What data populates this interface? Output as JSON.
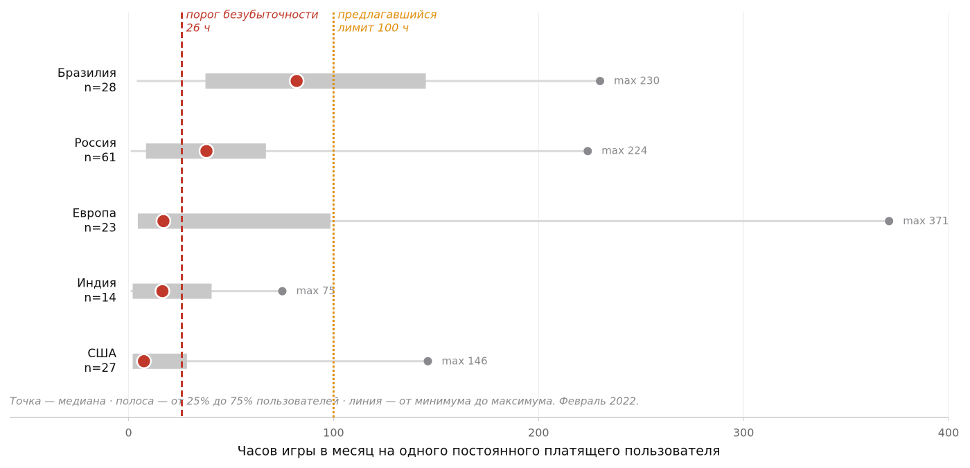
{
  "chart_data": {
    "type": "range",
    "categories": [
      "Бразилия",
      "Россия",
      "Европа",
      "Индия",
      "США"
    ],
    "sample_labels": [
      "n=28",
      "n=61",
      "n=23",
      "n=14",
      "n=27"
    ],
    "min": [
      4,
      1,
      4.5,
      1,
      2
    ],
    "q1": [
      37.5,
      8.5,
      4.5,
      2,
      2
    ],
    "median": [
      82,
      38,
      17,
      16.5,
      7.5
    ],
    "q3": [
      145,
      67,
      98.5,
      40.5,
      28.5
    ],
    "max": [
      230,
      224,
      371,
      75,
      146
    ],
    "value_labels": [
      "max 230",
      "max 224",
      "max 371",
      "max 75",
      "max 146"
    ],
    "colors": {
      "range": "#d9d9d9",
      "box": "#c8c8c8",
      "median": "#c0392b",
      "max": "#8a8a8e"
    },
    "reference_lines": [
      {
        "value": 26,
        "label": [
          "порог безубыточности",
          "26 ч"
        ],
        "color": "#c0392b",
        "style": "dashed"
      },
      {
        "value": 100,
        "label": [
          "предлагавшийся",
          "лимит 100 ч"
        ],
        "color": "#e08e0b",
        "style": "dotted"
      }
    ],
    "xlim": [
      -58,
      400
    ],
    "xticks": [
      0,
      100,
      200,
      300,
      400
    ],
    "grid": true,
    "xlabel": "Часов игры в месяц на одного постоянного платящего пользователя",
    "note": "Точка — медиана · полоса — от 25% до 75% пользователей · линия — от минимума до максимума. Февраль 2022."
  }
}
